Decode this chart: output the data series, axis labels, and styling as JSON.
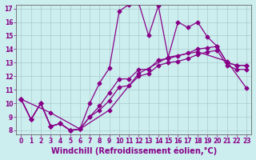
{
  "xlabel": "Windchill (Refroidissement éolien,°C)",
  "xlim": [
    -0.5,
    23.5
  ],
  "ylim": [
    7.7,
    17.3
  ],
  "yticks": [
    8,
    9,
    10,
    11,
    12,
    13,
    14,
    15,
    16,
    17
  ],
  "xticks": [
    0,
    1,
    2,
    3,
    4,
    5,
    6,
    7,
    8,
    9,
    10,
    11,
    12,
    13,
    14,
    15,
    16,
    17,
    18,
    19,
    20,
    21,
    22,
    23
  ],
  "line_color": "#880088",
  "bg_color": "#cceeee",
  "grid_color": "#aacccc",
  "line1_x": [
    0,
    1,
    2,
    3,
    4,
    5,
    6,
    7,
    8,
    9,
    10,
    11,
    12,
    13,
    14,
    15,
    16,
    17,
    18,
    19,
    20,
    21,
    22,
    23
  ],
  "line1_y": [
    10.3,
    8.8,
    10.0,
    8.3,
    8.5,
    8.0,
    8.1,
    10.0,
    11.5,
    12.6,
    16.8,
    17.3,
    17.4,
    15.0,
    17.2,
    13.4,
    16.0,
    15.6,
    16.0,
    14.9,
    14.2,
    13.0,
    12.8,
    12.8
  ],
  "line2_x": [
    0,
    1,
    2,
    3,
    4,
    5,
    6,
    7,
    8,
    9,
    10,
    11,
    12,
    13,
    14,
    15,
    16,
    17,
    18,
    19,
    20,
    21,
    22,
    23
  ],
  "line2_y": [
    10.3,
    8.8,
    10.0,
    8.3,
    8.5,
    8.0,
    8.1,
    9.0,
    9.8,
    10.8,
    11.8,
    11.8,
    12.5,
    12.5,
    13.2,
    13.3,
    13.5,
    13.7,
    14.0,
    14.1,
    14.2,
    13.0,
    12.8,
    12.8
  ],
  "line3_x": [
    0,
    1,
    2,
    3,
    4,
    5,
    6,
    7,
    8,
    9,
    10,
    11,
    12,
    13,
    14,
    15,
    16,
    17,
    18,
    19,
    20,
    21,
    22,
    23
  ],
  "line3_y": [
    10.3,
    8.8,
    10.0,
    8.3,
    8.5,
    8.0,
    8.1,
    9.0,
    9.5,
    10.2,
    11.2,
    11.3,
    12.0,
    12.2,
    12.8,
    13.0,
    13.1,
    13.3,
    13.6,
    13.8,
    13.9,
    12.8,
    12.5,
    12.5
  ],
  "line4_x": [
    0,
    3,
    6,
    9,
    12,
    15,
    18,
    21,
    23
  ],
  "line4_y": [
    10.3,
    9.3,
    8.1,
    9.5,
    12.2,
    13.4,
    13.8,
    13.1,
    11.1
  ],
  "marker": "D",
  "marker_size": 2.5,
  "linewidth": 0.9,
  "tick_fontsize": 5.5,
  "xlabel_fontsize": 7.0
}
